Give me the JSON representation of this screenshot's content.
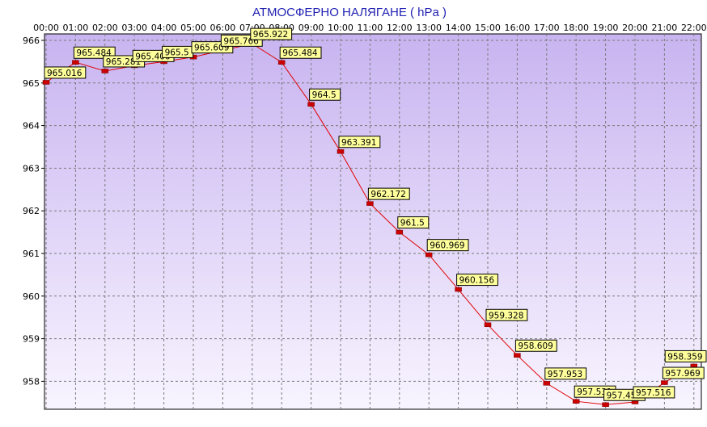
{
  "chart_data": {
    "type": "line",
    "title": "АТМОСФЕРНО НАЛЯГАНЕ  ( hPa )",
    "xlabel": "",
    "ylabel": "",
    "categories": [
      "00:00",
      "01:00",
      "02:00",
      "03:00",
      "04:00",
      "05:00",
      "06:00",
      "07:00",
      "08:00",
      "09:00",
      "10:00",
      "11:00",
      "12:00",
      "13:00",
      "14:00",
      "15:00",
      "16:00",
      "17:00",
      "18:00",
      "19:00",
      "20:00",
      "21:00",
      "22:00"
    ],
    "series": [
      {
        "values": [
          965.016,
          965.484,
          965.281,
          965.406,
          965.5,
          965.609,
          965.766,
          965.922,
          965.484,
          964.5,
          963.391,
          962.172,
          961.5,
          960.969,
          960.156,
          959.328,
          958.609,
          957.953,
          957.531,
          957.453,
          957.516,
          957.969,
          958.359
        ],
        "labels": [
          "965.016",
          "965.484",
          "965.281",
          "965.406",
          "965.5",
          "965.609",
          "965.766",
          "965.922",
          "965.484",
          "964.5",
          "963.391",
          "962.172",
          "961.5",
          "960.969",
          "960.156",
          "959.328",
          "958.609",
          "957.953",
          "957.531",
          "957.453",
          "957.516",
          "957.969",
          "958.359"
        ]
      }
    ],
    "yticks": [
      966,
      965,
      964,
      963,
      962,
      961,
      960,
      959,
      958
    ],
    "ylim": [
      957.4,
      966.05
    ],
    "grid": true,
    "legend": "none",
    "colors": {
      "line": "#e00000",
      "marker": "#cc0000",
      "label_bg": "#ffff9c",
      "title": "#2323b4",
      "plot_bg_top": "#c8b4f0",
      "plot_bg_bottom": "#f8f4ff"
    }
  }
}
